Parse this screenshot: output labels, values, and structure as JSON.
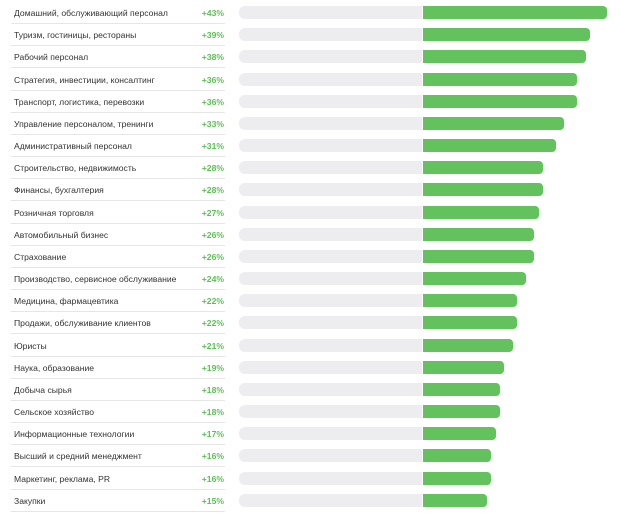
{
  "chart_data": {
    "type": "bar",
    "orientation": "horizontal",
    "grid": false,
    "legend": "none",
    "categories": [
      "Домашний, обслуживающий персонал",
      "Туризм, гостиницы, рестораны",
      "Рабочий персонал",
      "Стратегия, инвестиции, консалтинг",
      "Транспорт, логистика, перевозки",
      "Управление персоналом, тренинги",
      "Административный персонал",
      "Строительство, недвижимость",
      "Финансы, бухгалтерия",
      "Розничная торговля",
      "Автомобильный бизнес",
      "Страхование",
      "Производство, сервисное обслуживание",
      "Медицина, фармацевтика",
      "Продажи, обслуживание клиентов",
      "Юристы",
      "Наука, образование",
      "Добыча сырья",
      "Сельское хозяйство",
      "Информационные технологии",
      "Высший и средний менеджмент",
      "Маркетинг, реклама, PR",
      "Закупки"
    ],
    "values": [
      43,
      39,
      38,
      36,
      36,
      33,
      31,
      28,
      28,
      27,
      26,
      26,
      24,
      22,
      22,
      21,
      19,
      18,
      18,
      17,
      16,
      16,
      15
    ],
    "value_labels": [
      "+43%",
      "+39%",
      "+38%",
      "+36%",
      "+36%",
      "+33%",
      "+31%",
      "+28%",
      "+28%",
      "+27%",
      "+26%",
      "+26%",
      "+24%",
      "+22%",
      "+22%",
      "+21%",
      "+19%",
      "+18%",
      "+18%",
      "+17%",
      "+16%",
      "+16%",
      "+15%"
    ],
    "xlim": [
      0,
      43
    ],
    "colors": {
      "bar": "#63c15e",
      "track": "#ededf0",
      "value_text": "#5cbf55",
      "label_text": "#333333"
    }
  }
}
